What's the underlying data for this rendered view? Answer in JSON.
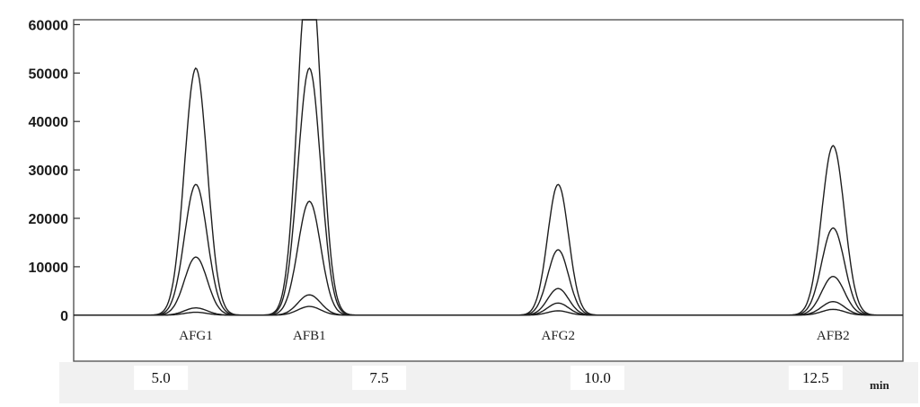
{
  "chart_data": {
    "type": "line",
    "title": "",
    "xlabel": "min",
    "ylabel": "",
    "xlim": [
      4.0,
      13.5
    ],
    "ylim": [
      -9500,
      61000
    ],
    "yticks": [
      0,
      10000,
      20000,
      30000,
      40000,
      50000,
      60000
    ],
    "ytick_labels": [
      "0",
      "10000",
      "20000",
      "30000",
      "40000",
      "50000",
      "60000"
    ],
    "xticks": [
      5.0,
      7.5,
      10.0,
      12.5
    ],
    "xtick_labels": [
      "5.0",
      "7.5",
      "10.0",
      "12.5"
    ],
    "grid": false,
    "peaks": [
      {
        "label": "AFG1",
        "rt": 5.4
      },
      {
        "label": "AFB1",
        "rt": 6.7
      },
      {
        "label": "AFG2",
        "rt": 9.55
      },
      {
        "label": "AFB2",
        "rt": 12.7
      }
    ],
    "series": [
      {
        "peak_heights": [
          51000,
          75000,
          27000,
          35000
        ]
      },
      {
        "peak_heights": [
          27000,
          51000,
          13500,
          18000
        ]
      },
      {
        "peak_heights": [
          12000,
          23500,
          5500,
          8000
        ]
      },
      {
        "peak_heights": [
          1500,
          4200,
          2500,
          2800
        ]
      },
      {
        "peak_heights": [
          600,
          1800,
          900,
          1200
        ]
      }
    ]
  }
}
